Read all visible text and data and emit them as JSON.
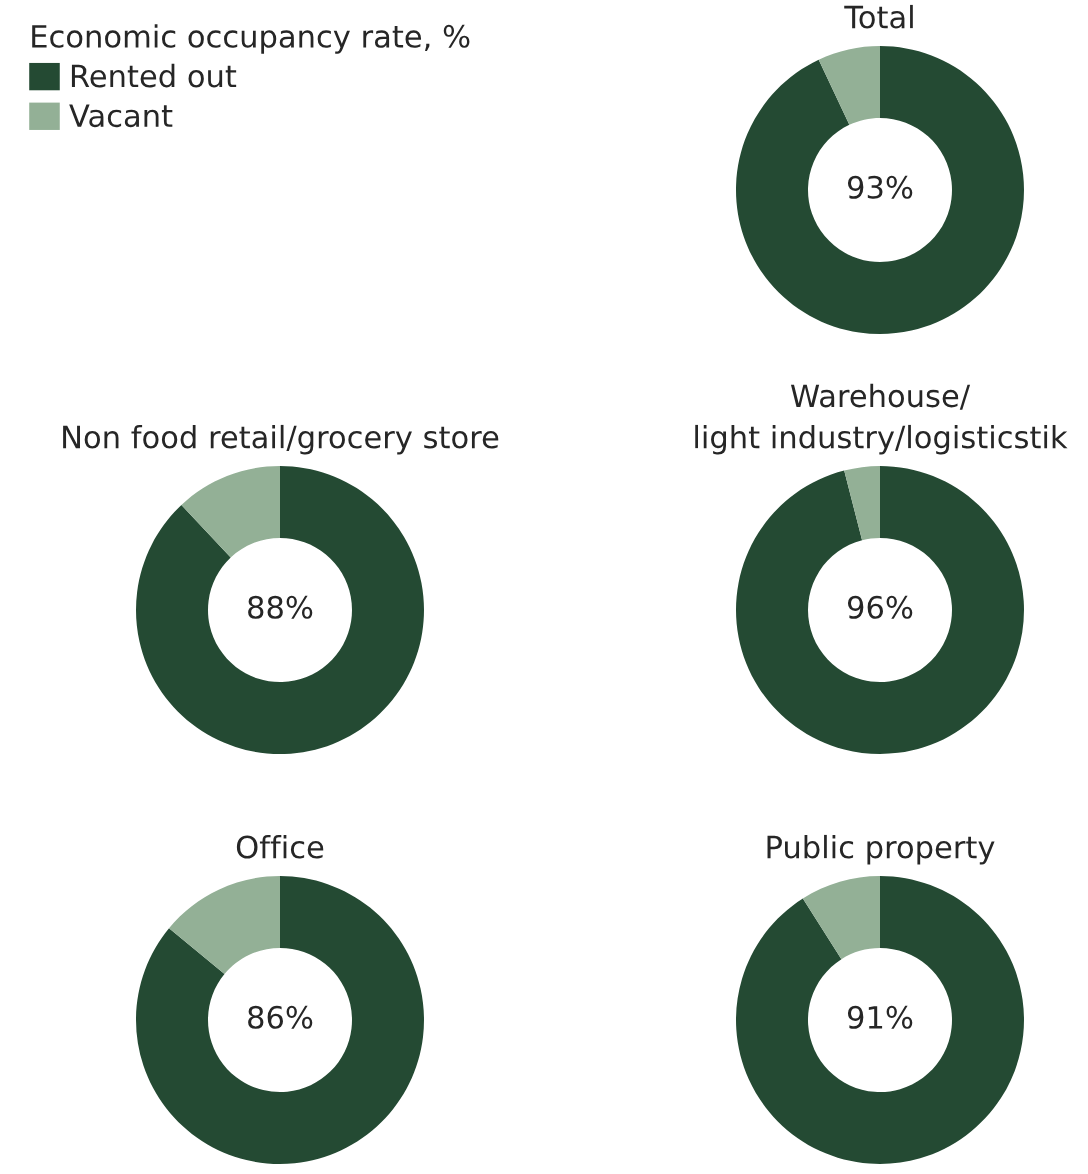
{
  "chart_data": [
    {
      "type": "donut",
      "title": "Total",
      "legend_title": "Economic occupancy rate, %",
      "legend": "left",
      "categories": [
        "Rented out",
        "Vacant"
      ],
      "values": [
        93,
        7
      ],
      "colors": [
        "#244a33",
        "#93b096"
      ],
      "value_labels": [
        "93%",
        null
      ]
    },
    {
      "type": "donut",
      "title": "Non food retail/grocery store",
      "categories": [
        null,
        null
      ],
      "values": [
        88,
        12
      ],
      "colors": [
        "#244a33",
        "#93b096"
      ],
      "value_labels": [
        "88%",
        null
      ]
    },
    {
      "type": "donut",
      "title": "Warehouse/\nlight industry/logisticstik",
      "categories": [
        null,
        null
      ],
      "values": [
        96,
        4
      ],
      "colors": [
        "#244a33",
        "#93b096"
      ],
      "value_labels": [
        "96%",
        null
      ]
    },
    {
      "type": "donut",
      "title": "Office",
      "categories": [
        null,
        null
      ],
      "values": [
        86,
        14
      ],
      "colors": [
        "#244a33",
        "#93b096"
      ],
      "value_labels": [
        "86%",
        null
      ]
    },
    {
      "type": "donut",
      "title": "Public property",
      "categories": [
        null,
        null
      ],
      "values": [
        91,
        9
      ],
      "colors": [
        "#244a33",
        "#93b096"
      ],
      "value_labels": [
        "91%",
        null
      ]
    }
  ]
}
